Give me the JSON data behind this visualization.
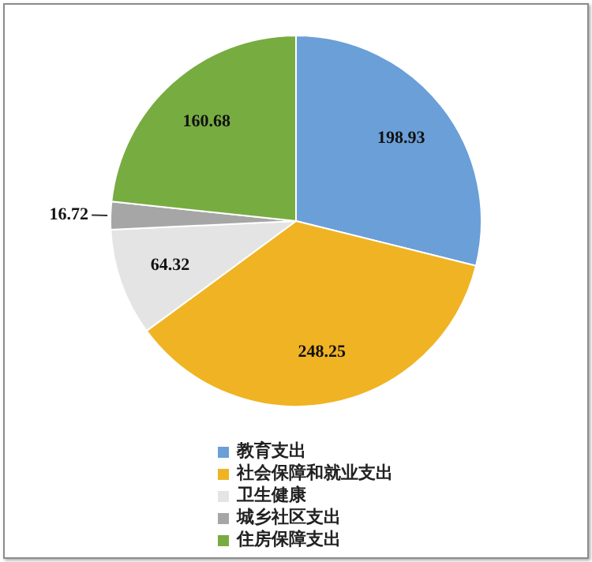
{
  "chart_data": {
    "type": "pie",
    "categories": [
      "教育支出",
      "社会保障和就业支出",
      "卫生健康",
      "城乡社区支出",
      "住房保障支出"
    ],
    "values": [
      198.93,
      248.25,
      64.32,
      16.72,
      160.68
    ],
    "colors": [
      "#6a9fd8",
      "#f0b323",
      "#e4e4e4",
      "#a6a6a6",
      "#77ac41"
    ],
    "data_labels": true,
    "legend": "bottom"
  }
}
